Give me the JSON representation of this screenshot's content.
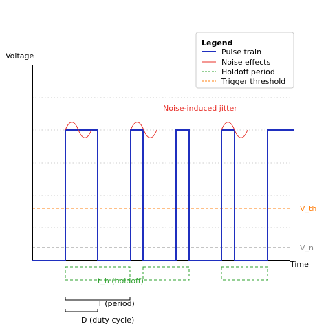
{
  "axes": {
    "y_label": "Voltage",
    "x_label": "Time"
  },
  "legend": {
    "title": "Legend",
    "items": [
      "Pulse train",
      "Noise effects",
      "Holdoff period",
      "Trigger threshold"
    ]
  },
  "annotations": {
    "jitter": "Noise-induced jitter",
    "threshold": "V_th",
    "noise_level": "V_n",
    "holdoff": "t_h (holdoff)",
    "period": "T (period)",
    "duty_cycle": "D (duty cycle)"
  }
}
